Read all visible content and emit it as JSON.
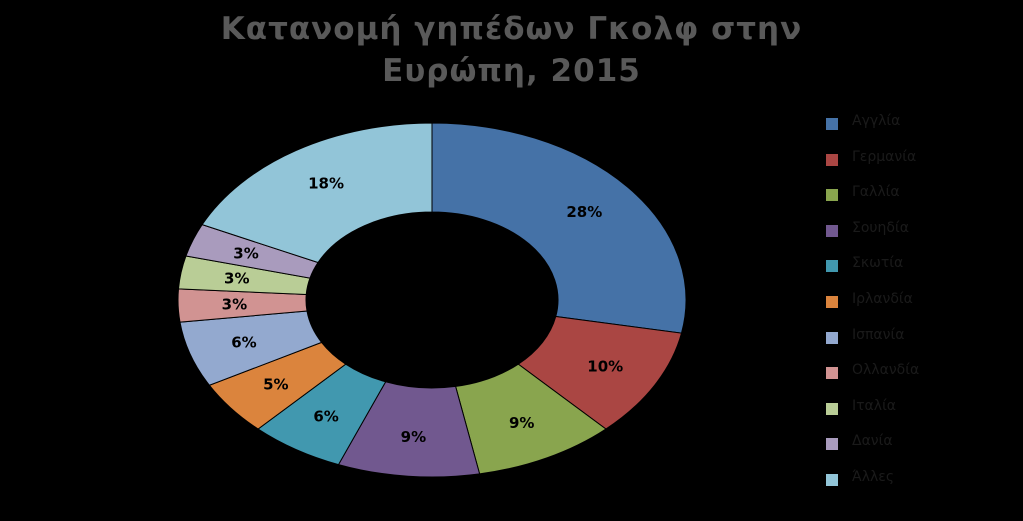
{
  "title_line1": "Κατανομή γηπέδων Γκολφ στην",
  "title_line2": "Ευρώπη, 2015",
  "chart_data": {
    "type": "pie",
    "donut": true,
    "title": "Κατανομή γηπέδων Γκολφ στην Ευρώπη, 2015",
    "categories": [
      "Αγγλία",
      "Γερμανία",
      "Γαλλία",
      "Σουηδία",
      "Σκωτία",
      "Ιρλανδία",
      "Ισπανία",
      "Ολλανδία",
      "Ιταλία",
      "Δανία",
      "Άλλες"
    ],
    "values": [
      28,
      10,
      9,
      9,
      6,
      5,
      6,
      3,
      3,
      3,
      18
    ],
    "labels": [
      "28%",
      "10%",
      "9%",
      "9%",
      "6%",
      "5%",
      "6%",
      "3%",
      "3%",
      "3%",
      "18%"
    ],
    "colors": [
      "#4572A7",
      "#AA4643",
      "#89A54E",
      "#71588F",
      "#4198AF",
      "#DB843D",
      "#93A9CF",
      "#D19392",
      "#B9CD96",
      "#A99BBD",
      "#92C5D8"
    ],
    "legend_position": "right"
  }
}
